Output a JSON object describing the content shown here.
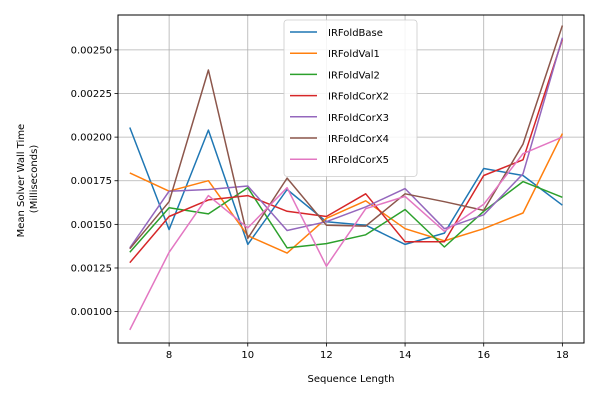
{
  "chart_data": {
    "type": "line",
    "title": "",
    "xlabel": "Sequence Length",
    "ylabel_lines": [
      "Mean Solver Wall Time",
      "(Milliseconds)"
    ],
    "xlim": [
      6.7,
      18.55
    ],
    "ylim": [
      0.00082,
      0.0027
    ],
    "xticks": [
      8,
      10,
      12,
      14,
      16,
      18
    ],
    "yticks": [
      0.001,
      0.00125,
      0.0015,
      0.00175,
      0.002,
      0.00225,
      0.0025
    ],
    "ytick_labels": [
      "0.00100",
      "0.00125",
      "0.00150",
      "0.00175",
      "0.00200",
      "0.00225",
      "0.00250"
    ],
    "grid": true,
    "legend_position": "top-center",
    "x": [
      7,
      8,
      9,
      10,
      11,
      12,
      13,
      14,
      15,
      16,
      17,
      18
    ],
    "series": [
      {
        "name": "IRFoldBase",
        "color": "#1f77b4",
        "values": [
          0.002055,
          0.00147,
          0.00204,
          0.001385,
          0.0017,
          0.001515,
          0.001495,
          0.001385,
          0.00145,
          0.00182,
          0.00178,
          0.00161
        ]
      },
      {
        "name": "IRFoldVal1",
        "color": "#ff7f0e",
        "values": [
          0.001795,
          0.00169,
          0.00175,
          0.001435,
          0.001335,
          0.001535,
          0.001635,
          0.001475,
          0.001405,
          0.001475,
          0.001565,
          0.00202
        ]
      },
      {
        "name": "IRFoldVal2",
        "color": "#2ca02c",
        "values": [
          0.00134,
          0.001595,
          0.00156,
          0.00171,
          0.001365,
          0.00139,
          0.00144,
          0.001585,
          0.00137,
          0.001575,
          0.001745,
          0.001655
        ]
      },
      {
        "name": "IRFoldCorX2",
        "color": "#d62728",
        "values": [
          0.00128,
          0.001545,
          0.00164,
          0.001665,
          0.001575,
          0.001545,
          0.001675,
          0.0014,
          0.0014,
          0.00178,
          0.00187,
          0.00256
        ]
      },
      {
        "name": "IRFoldCorX3",
        "color": "#9467bd",
        "values": [
          0.001365,
          0.00169,
          0.0017,
          0.00172,
          0.001465,
          0.001515,
          0.0016,
          0.001705,
          0.001475,
          0.001555,
          0.00179,
          0.00257
        ]
      },
      {
        "name": "IRFoldCorX4",
        "color": "#8c564b",
        "values": [
          0.00136,
          0.00163,
          0.002385,
          0.00142,
          0.001765,
          0.001495,
          0.00149,
          0.001675,
          0.00163,
          0.00158,
          0.00196,
          0.00264
        ]
      },
      {
        "name": "IRFoldCorX5",
        "color": "#e377c2",
        "values": [
          0.000895,
          0.00134,
          0.001665,
          0.00148,
          0.00171,
          0.00126,
          0.00159,
          0.00166,
          0.00146,
          0.001615,
          0.001905,
          0.002
        ]
      }
    ]
  }
}
